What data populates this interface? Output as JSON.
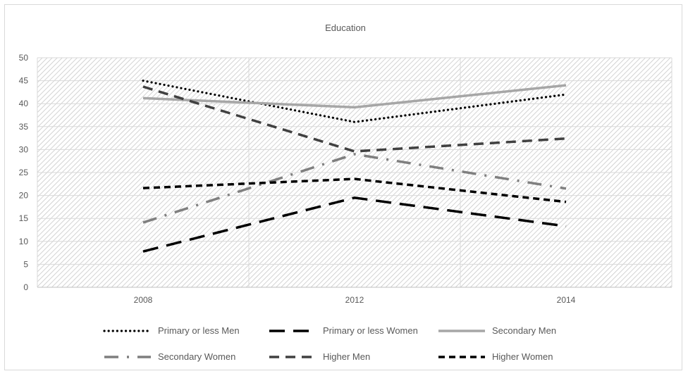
{
  "chart_data": {
    "type": "line",
    "title": "Education",
    "categories": [
      "2008",
      "2012",
      "2014"
    ],
    "ylim": [
      0,
      50
    ],
    "yticks": [
      0,
      5,
      10,
      15,
      20,
      25,
      30,
      35,
      40,
      45,
      50
    ],
    "grid": true,
    "legend_position": "bottom",
    "series": [
      {
        "name": "Primary or less Men",
        "values": [
          45.0,
          36.0,
          42.0
        ],
        "color": "#000000",
        "style": "dotted"
      },
      {
        "name": "Primary or less Women",
        "values": [
          7.8,
          19.5,
          13.3
        ],
        "color": "#000000",
        "style": "long-dash"
      },
      {
        "name": "Secondary Men",
        "values": [
          41.2,
          39.2,
          44.0
        ],
        "color": "#a6a6a6",
        "style": "solid"
      },
      {
        "name": "Secondary Women",
        "values": [
          14.1,
          29.0,
          21.5
        ],
        "color": "#7f7f7f",
        "style": "dash-dot"
      },
      {
        "name": "Higher Men",
        "values": [
          43.7,
          29.6,
          32.4
        ],
        "color": "#404040",
        "style": "dash"
      },
      {
        "name": "Higher Women",
        "values": [
          21.6,
          23.6,
          18.6
        ],
        "color": "#000000",
        "style": "short-dash"
      }
    ]
  }
}
